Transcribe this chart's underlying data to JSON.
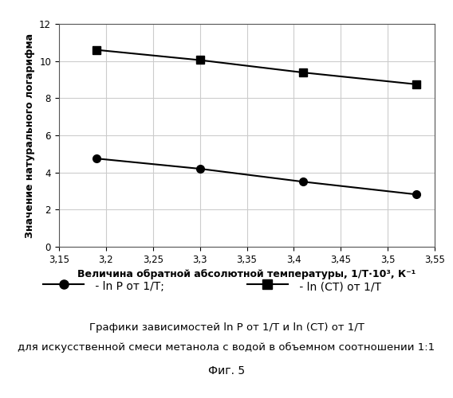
{
  "line1_x": [
    3.19,
    3.3,
    3.41,
    3.53
  ],
  "line1_y": [
    4.75,
    4.2,
    3.5,
    2.82
  ],
  "line2_x": [
    3.19,
    3.3,
    3.41,
    3.53
  ],
  "line2_y": [
    10.6,
    10.05,
    9.38,
    8.75
  ],
  "xlim": [
    3.15,
    3.55
  ],
  "ylim": [
    0,
    12
  ],
  "xticks": [
    3.15,
    3.2,
    3.25,
    3.3,
    3.35,
    3.4,
    3.45,
    3.5,
    3.55
  ],
  "yticks": [
    0,
    2,
    4,
    6,
    8,
    10,
    12
  ],
  "xlabel": "Величина обратной абсолютной температуры, 1/Т·10³, К⁻¹",
  "ylabel": "Значение натурального логарифма",
  "legend1_label": " - ln P от 1/T;",
  "legend2_label": " - ln (CТ) от 1/T",
  "caption_line1": "Графики зависимостей ln P от 1/T и ln (CТ) от 1/T",
  "caption_line2": "для искусственной смеси метанола с водой в объемном соотношении 1:1",
  "caption_fig": "Фиг. 5",
  "line_color": "#000000",
  "marker1": "o",
  "marker2": "s",
  "background_color": "#ffffff",
  "grid_color": "#cccccc"
}
